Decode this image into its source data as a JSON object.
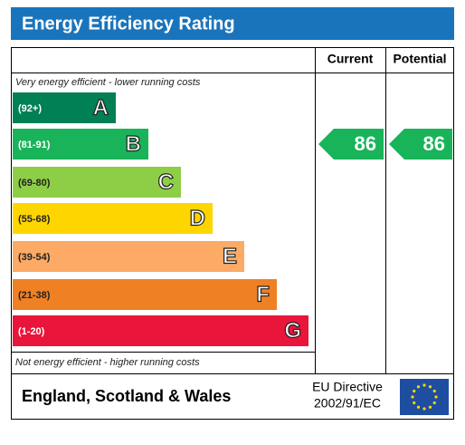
{
  "title": "Energy Efficiency Rating",
  "headers": {
    "current": "Current",
    "potential": "Potential"
  },
  "top_note": "Very energy efficient - lower running costs",
  "bottom_note": "Not energy efficient - higher running costs",
  "bands": [
    {
      "range": "(92+)",
      "letter": "A",
      "color": "#008054"
    },
    {
      "range": "(81-91)",
      "letter": "B",
      "color": "#19b459"
    },
    {
      "range": "(69-80)",
      "letter": "C",
      "color": "#8dce46"
    },
    {
      "range": "(55-68)",
      "letter": "D",
      "color": "#ffd500"
    },
    {
      "range": "(39-54)",
      "letter": "E",
      "color": "#fcaa65"
    },
    {
      "range": "(21-38)",
      "letter": "F",
      "color": "#ef8023"
    },
    {
      "range": "(1-20)",
      "letter": "G",
      "color": "#e9153b"
    }
  ],
  "current": {
    "value": 86,
    "color": "#19b459"
  },
  "potential": {
    "value": 86,
    "color": "#19b459"
  },
  "footer": {
    "region": "England, Scotland & Wales",
    "directive": [
      "EU Directive",
      "2002/91/EC"
    ]
  }
}
